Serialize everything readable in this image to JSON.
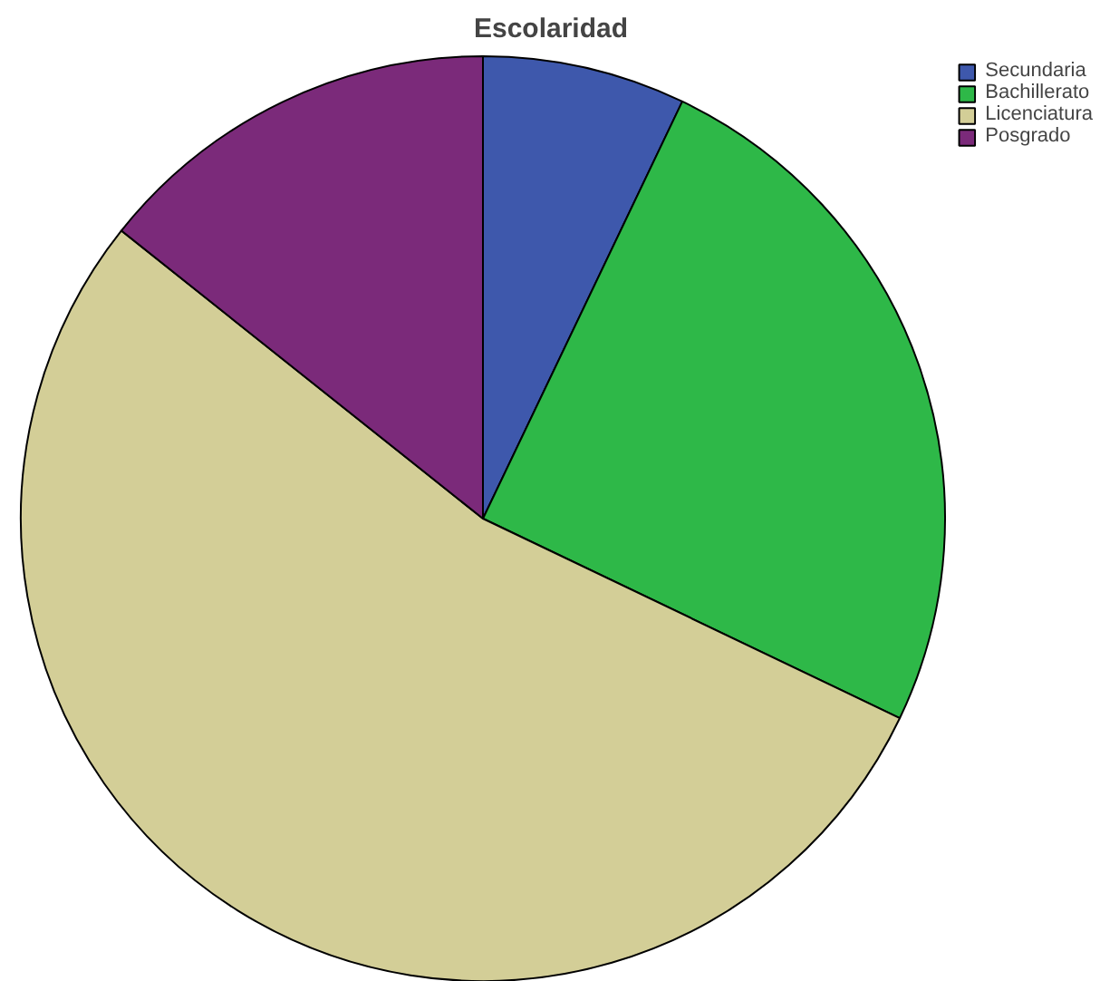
{
  "chart_data": {
    "type": "pie",
    "title": "Escolaridad",
    "categories": [
      "Secundaria",
      "Bachillerato",
      "Licenciatura",
      "Posgrado"
    ],
    "values": [
      7.1,
      25.0,
      53.6,
      14.3
    ],
    "colors": [
      "#3e58ac",
      "#2eb848",
      "#d3ce97",
      "#7b2a7a"
    ],
    "legend": "top right"
  }
}
